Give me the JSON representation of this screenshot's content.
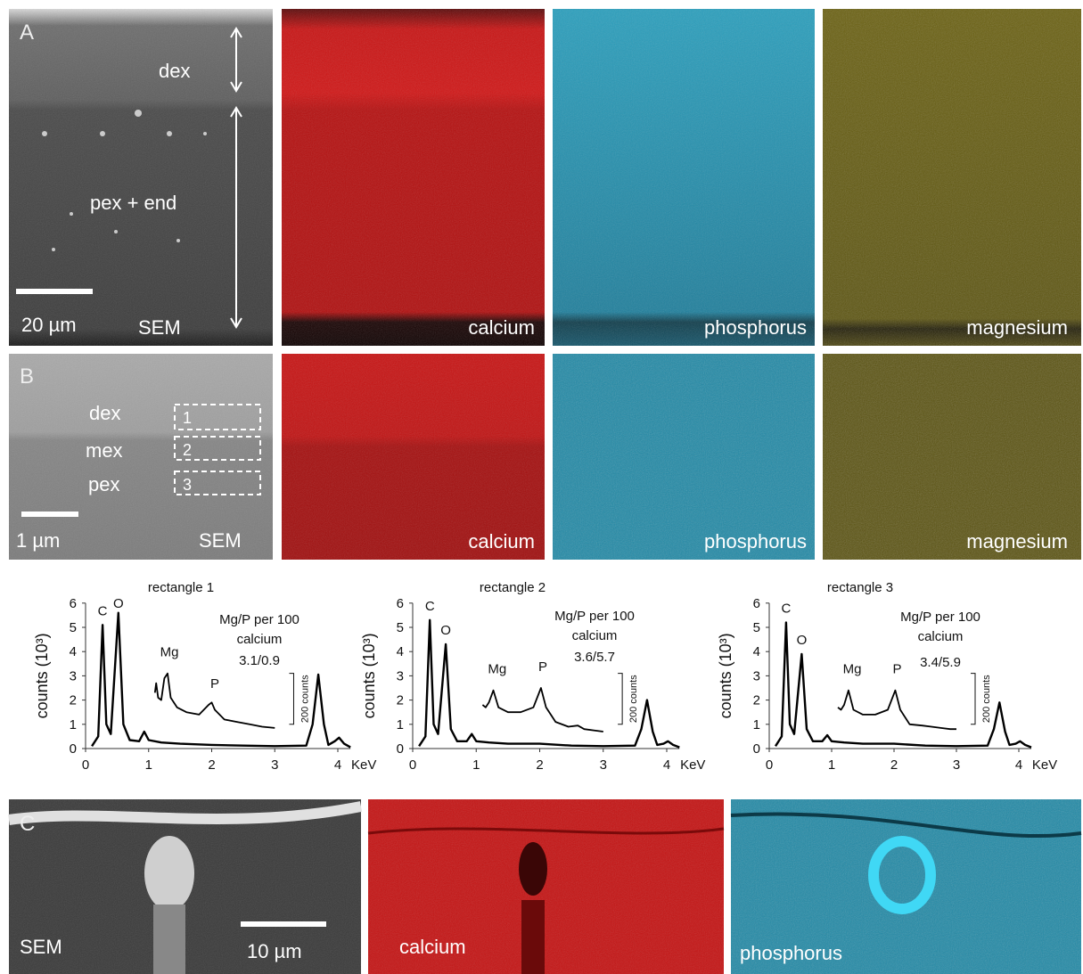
{
  "panel_labels": [
    "A",
    "B",
    "C"
  ],
  "row_a": {
    "sem": {
      "region_1": "dex",
      "region_2": "pex + end",
      "scale": "20 µm",
      "label": "SEM"
    },
    "maps": [
      "calcium",
      "phosphorus",
      "magnesium"
    ]
  },
  "row_b": {
    "sem": {
      "region_1": "dex",
      "region_2": "mex",
      "region_3": "pex",
      "boxes": [
        "1",
        "2",
        "3"
      ],
      "scale": "1 µm",
      "label": "SEM"
    },
    "maps": [
      "calcium",
      "phosphorus",
      "magnesium"
    ]
  },
  "row_c": {
    "sem": {
      "label": "SEM",
      "scale": "10 µm"
    },
    "maps": [
      "calcium",
      "phosphorus"
    ]
  },
  "chart_data": [
    {
      "type": "line",
      "title": "rectangle 1",
      "y_label": "counts (10³)",
      "x_label": "KeV",
      "xlim": [
        0,
        4.2
      ],
      "ylim": [
        0,
        6
      ],
      "xticks": [
        0,
        1,
        2,
        3,
        4
      ],
      "yticks": [
        0,
        1,
        2,
        3,
        4,
        5,
        6
      ],
      "annotations": [
        "Mg/P per 100",
        "calcium",
        "3.1/0.9"
      ],
      "peak_labels": [
        "C",
        "O",
        "Mg",
        "P"
      ],
      "scale_bar_label": "200 counts",
      "series": [
        {
          "color": "#000000",
          "x": [
            0.1,
            0.2,
            0.27,
            0.33,
            0.4,
            0.52,
            0.6,
            0.7,
            0.85,
            0.93,
            1.0,
            1.2,
            1.5,
            2.0,
            2.5,
            3.0,
            3.5,
            3.6,
            3.69,
            3.78,
            3.85,
            3.95,
            4.02,
            4.1,
            4.2
          ],
          "values": [
            0.1,
            0.5,
            5.1,
            1,
            0.6,
            5.6,
            1,
            0.35,
            0.3,
            0.7,
            0.35,
            0.25,
            0.2,
            0.15,
            0.12,
            0.1,
            0.12,
            1,
            3.05,
            1,
            0.15,
            0.3,
            0.45,
            0.2,
            0.05
          ]
        },
        {
          "color": "#000000",
          "x": [
            1.1,
            1.12,
            1.15,
            1.2,
            1.25,
            1.3,
            1.35,
            1.45,
            1.6,
            1.8,
            1.95,
            2.0,
            2.05,
            2.2,
            2.4,
            2.6,
            2.8,
            3.0
          ],
          "values": [
            2.3,
            2.7,
            2.1,
            2.0,
            2.9,
            3.1,
            2.1,
            1.7,
            1.5,
            1.4,
            1.8,
            1.9,
            1.6,
            1.2,
            1.1,
            1.0,
            0.9,
            0.85
          ]
        }
      ]
    },
    {
      "type": "line",
      "title": "rectangle 2",
      "y_label": "counts (10³)",
      "x_label": "KeV",
      "xlim": [
        0,
        4.2
      ],
      "ylim": [
        0,
        6
      ],
      "xticks": [
        0,
        1,
        2,
        3,
        4
      ],
      "yticks": [
        0,
        1,
        2,
        3,
        4,
        5,
        6
      ],
      "annotations": [
        "Mg/P per 100",
        "calcium",
        "3.6/5.7"
      ],
      "peak_labels": [
        "C",
        "O",
        "Mg",
        "P"
      ],
      "scale_bar_label": "200 counts",
      "series": [
        {
          "color": "#000000",
          "x": [
            0.1,
            0.2,
            0.27,
            0.33,
            0.4,
            0.52,
            0.6,
            0.7,
            0.85,
            0.93,
            1.0,
            1.2,
            1.5,
            2.0,
            2.5,
            3.0,
            3.5,
            3.6,
            3.69,
            3.78,
            3.85,
            3.95,
            4.02,
            4.1,
            4.2
          ],
          "values": [
            0.1,
            0.5,
            5.3,
            1,
            0.6,
            4.3,
            0.8,
            0.3,
            0.3,
            0.6,
            0.3,
            0.25,
            0.2,
            0.2,
            0.12,
            0.1,
            0.12,
            0.8,
            2.0,
            0.7,
            0.15,
            0.2,
            0.3,
            0.15,
            0.05
          ]
        },
        {
          "color": "#000000",
          "x": [
            1.1,
            1.15,
            1.2,
            1.27,
            1.35,
            1.5,
            1.7,
            1.9,
            2.02,
            2.1,
            2.25,
            2.45,
            2.6,
            2.7,
            2.85,
            3.0
          ],
          "values": [
            1.8,
            1.7,
            1.9,
            2.4,
            1.7,
            1.5,
            1.5,
            1.7,
            2.5,
            1.7,
            1.1,
            0.9,
            0.95,
            0.8,
            0.75,
            0.7
          ]
        }
      ]
    },
    {
      "type": "line",
      "title": "rectangle 3",
      "y_label": "counts (10³)",
      "x_label": "KeV",
      "xlim": [
        0,
        4.2
      ],
      "ylim": [
        0,
        6
      ],
      "xticks": [
        0,
        1,
        2,
        3,
        4
      ],
      "yticks": [
        0,
        1,
        2,
        3,
        4,
        5,
        6
      ],
      "annotations": [
        "Mg/P per 100",
        "calcium",
        "3.4/5.9"
      ],
      "peak_labels": [
        "C",
        "O",
        "Mg",
        "P"
      ],
      "scale_bar_label": "200 counts",
      "series": [
        {
          "color": "#000000",
          "x": [
            0.1,
            0.2,
            0.27,
            0.33,
            0.4,
            0.52,
            0.6,
            0.7,
            0.85,
            0.93,
            1.0,
            1.2,
            1.5,
            2.0,
            2.5,
            3.0,
            3.5,
            3.6,
            3.69,
            3.78,
            3.85,
            3.95,
            4.02,
            4.1,
            4.2
          ],
          "values": [
            0.1,
            0.5,
            5.2,
            1,
            0.6,
            3.9,
            0.8,
            0.3,
            0.3,
            0.55,
            0.3,
            0.25,
            0.2,
            0.2,
            0.12,
            0.1,
            0.12,
            0.8,
            1.9,
            0.7,
            0.15,
            0.2,
            0.3,
            0.15,
            0.05
          ]
        },
        {
          "color": "#000000",
          "x": [
            1.1,
            1.15,
            1.2,
            1.27,
            1.35,
            1.5,
            1.7,
            1.9,
            2.02,
            2.1,
            2.25,
            2.45,
            2.6,
            2.75,
            2.9,
            3.0
          ],
          "values": [
            1.7,
            1.6,
            1.8,
            2.4,
            1.6,
            1.4,
            1.4,
            1.6,
            2.4,
            1.6,
            1.0,
            0.95,
            0.9,
            0.85,
            0.8,
            0.8
          ]
        }
      ]
    }
  ]
}
